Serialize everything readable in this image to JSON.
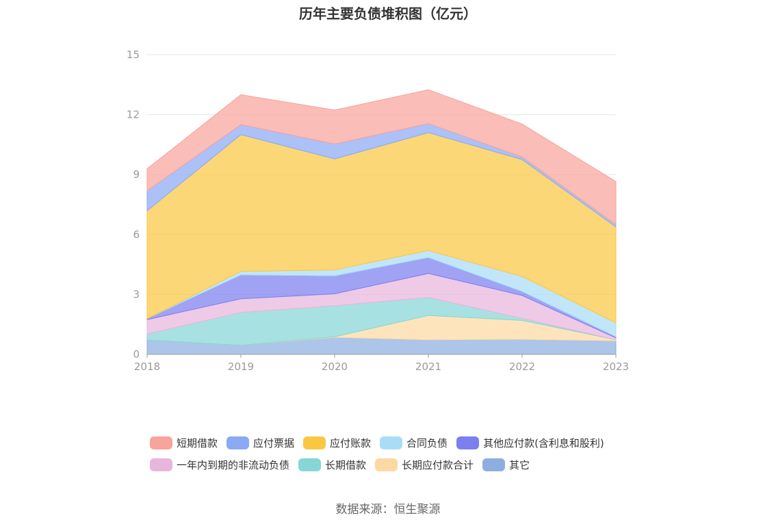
{
  "chart_data": {
    "type": "area",
    "title": "历年主要负债堆积图（亿元）",
    "x": [
      "2018",
      "2019",
      "2020",
      "2021",
      "2022",
      "2023"
    ],
    "ylim": [
      0,
      15
    ],
    "yticks": [
      0,
      3,
      6,
      9,
      12,
      15
    ],
    "stacked": true,
    "grid": true,
    "legend_position": "bottom",
    "series": [
      {
        "name": "其它",
        "color": "#8eaee0",
        "values": [
          0.72,
          0.45,
          0.85,
          0.73,
          0.75,
          0.68
        ]
      },
      {
        "name": "长期应付款合计",
        "color": "#fcd9a3",
        "values": [
          0,
          0,
          0.03,
          1.22,
          0.95,
          0.05
        ]
      },
      {
        "name": "长期借款",
        "color": "#86d6d6",
        "values": [
          0.3,
          1.65,
          1.55,
          0.9,
          0.1,
          0
        ]
      },
      {
        "name": "一年内到期的非流动负债",
        "color": "#e8b5dd",
        "values": [
          0.72,
          0.68,
          0.6,
          1.2,
          1.15,
          0.1
        ]
      },
      {
        "name": "其他应付款(含利息和股利)",
        "color": "#7b7ff0",
        "values": [
          0.05,
          1.2,
          0.9,
          0.8,
          0.2,
          0.05
        ]
      },
      {
        "name": "合同负债",
        "color": "#a9ddf7",
        "values": [
          0,
          0.17,
          0.3,
          0.35,
          0.75,
          0.7
        ]
      },
      {
        "name": "应付账款",
        "color": "#fbc742",
        "values": [
          5.4,
          6.85,
          5.55,
          5.9,
          5.85,
          4.8
        ]
      },
      {
        "name": "应付票据",
        "color": "#8ba9f4",
        "values": [
          1.0,
          0.5,
          0.75,
          0.45,
          0.13,
          0.12
        ]
      },
      {
        "name": "短期借款",
        "color": "#f8a39b",
        "values": [
          1.1,
          1.5,
          1.7,
          1.7,
          1.65,
          2.15
        ]
      }
    ]
  },
  "legend": {
    "row1": [
      {
        "name": "短期借款",
        "color": "#f8a39b"
      },
      {
        "name": "应付票据",
        "color": "#8ba9f4"
      },
      {
        "name": "应付账款",
        "color": "#fbc742"
      },
      {
        "name": "合同负债",
        "color": "#a9ddf7"
      },
      {
        "name": "其他应付款(含利息和股利)",
        "color": "#7b7ff0"
      }
    ],
    "row2": [
      {
        "name": "一年内到期的非流动负债",
        "color": "#e8b5dd"
      },
      {
        "name": "长期借款",
        "color": "#86d6d6"
      },
      {
        "name": "长期应付款合计",
        "color": "#fcd9a3"
      },
      {
        "name": "其它",
        "color": "#8eaee0"
      }
    ]
  },
  "source": "数据来源：恒生聚源"
}
